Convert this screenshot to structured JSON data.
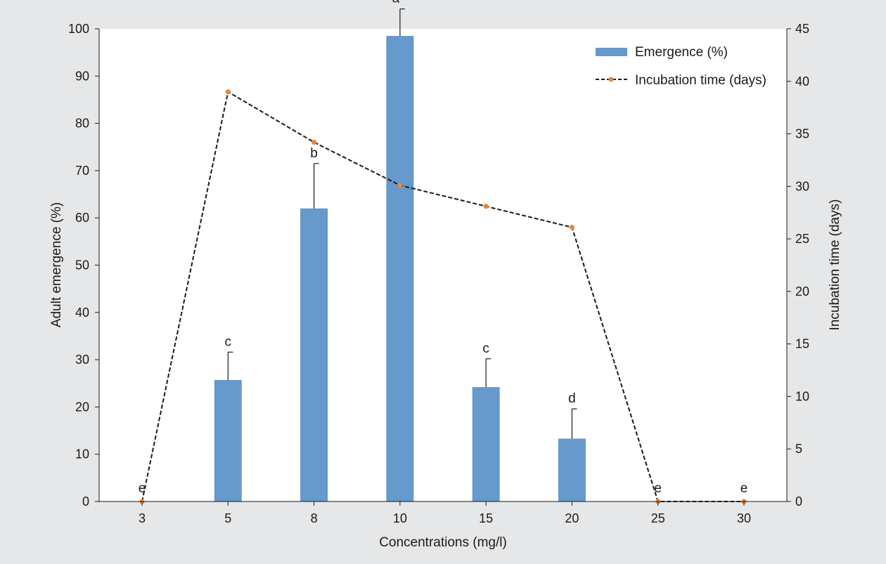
{
  "chart_data": {
    "type": "bar",
    "categories": [
      "3",
      "5",
      "8",
      "10",
      "15",
      "20",
      "25",
      "30"
    ],
    "xlabel": "Concentrations (mg/l)",
    "ylabel": "Adult emergence (%)",
    "y2label": "Incubation time (days)",
    "ylim": [
      0,
      100
    ],
    "yticks": [
      0,
      10,
      20,
      30,
      40,
      50,
      60,
      70,
      80,
      90,
      100
    ],
    "y2lim": [
      0,
      45
    ],
    "y2ticks": [
      0,
      5,
      10,
      15,
      20,
      25,
      30,
      35,
      40,
      45
    ],
    "series": [
      {
        "name": "Emergence (%)",
        "kind": "bar",
        "axis": "left",
        "color": "#6699cc",
        "values": [
          0,
          25.7,
          62,
          98.5,
          24.2,
          13.3,
          0,
          0
        ],
        "errors": [
          0,
          5.9,
          9.5,
          5.7,
          6.0,
          6.3,
          0,
          0
        ],
        "significance": [
          "e",
          "c",
          "b",
          "a",
          "c",
          "d",
          "e",
          "e"
        ]
      },
      {
        "name": "Incubation time (days)",
        "kind": "line",
        "axis": "right",
        "style": "dashed",
        "line_color": "#1a1a1a",
        "marker_color": "#e8873a",
        "values": [
          0,
          39,
          34.2,
          30.1,
          28.1,
          26.1,
          0,
          0
        ]
      }
    ],
    "legend_position": "top-right",
    "grid": false
  }
}
